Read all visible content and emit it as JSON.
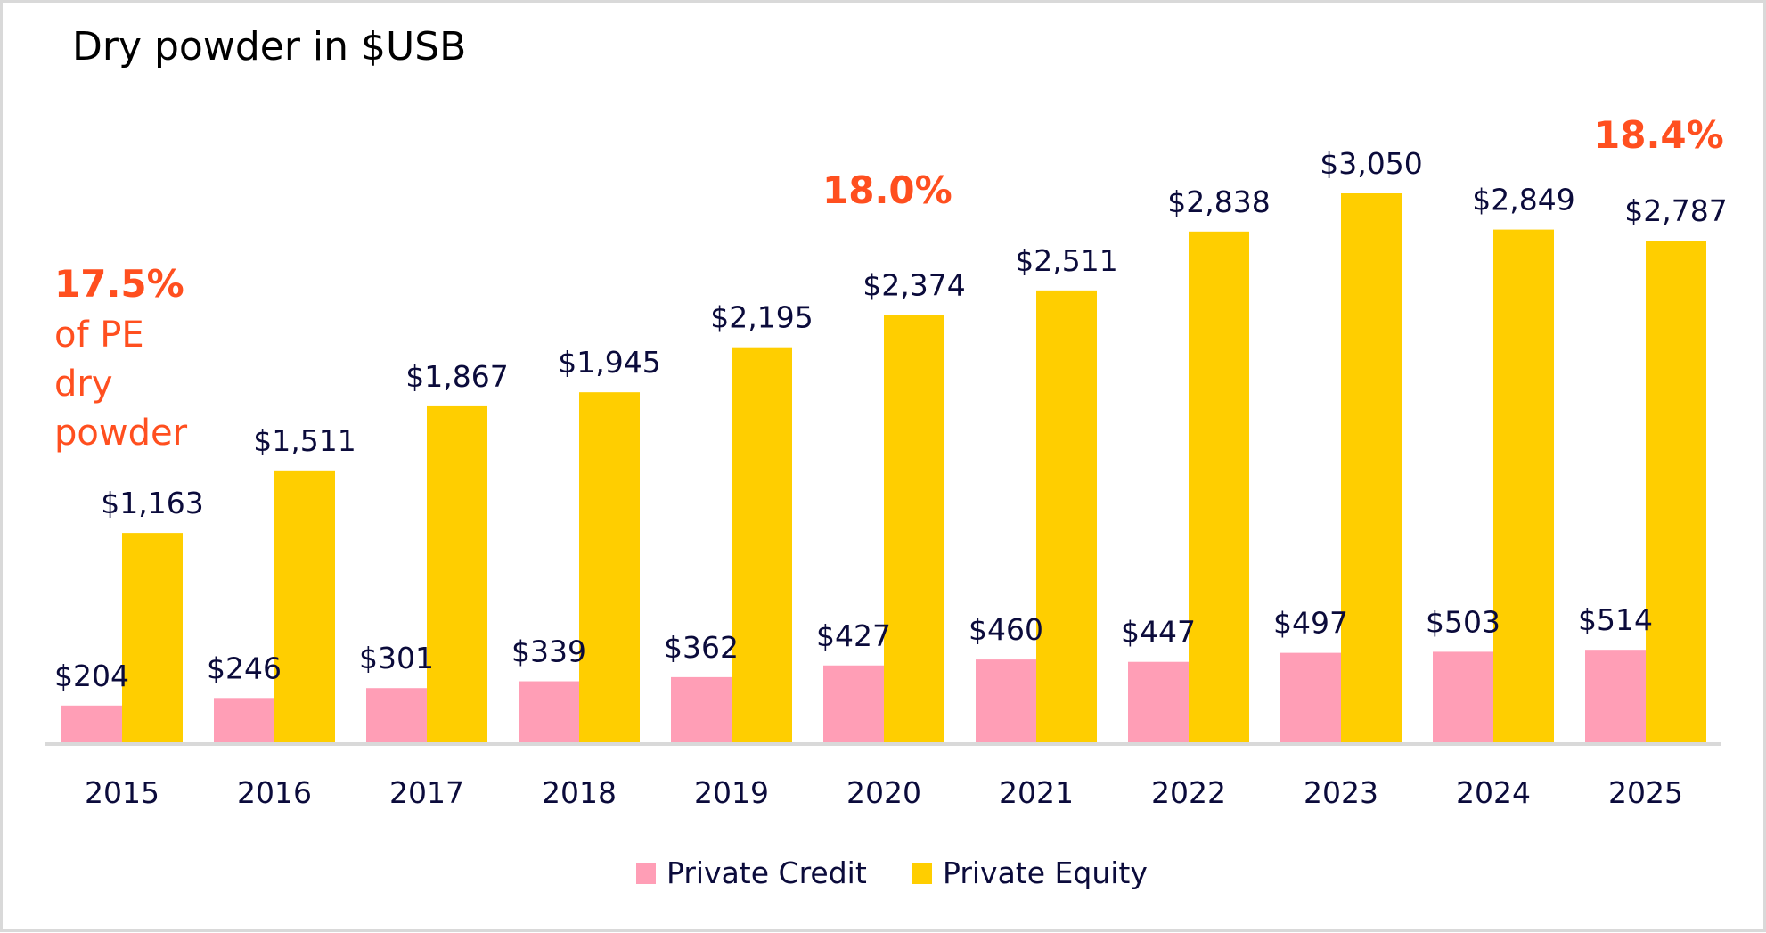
{
  "chart_data": {
    "type": "bar",
    "title": "Dry powder in $USB",
    "categories": [
      "2015",
      "2016",
      "2017",
      "2018",
      "2019",
      "2020",
      "2021",
      "2022",
      "2023",
      "2024",
      "2025"
    ],
    "series": [
      {
        "name": "Private Credit",
        "color": "#FF9EB6",
        "values": [
          204,
          246,
          301,
          339,
          362,
          427,
          460,
          447,
          497,
          503,
          514
        ],
        "labels": [
          "$204",
          "$246",
          "$301",
          "$339",
          "$362",
          "$427",
          "$460",
          "$447",
          "$497",
          "$503",
          "$514"
        ]
      },
      {
        "name": "Private Equity",
        "color": "#FFCE00",
        "values": [
          1163,
          1511,
          1867,
          1945,
          2195,
          2374,
          2511,
          2838,
          3050,
          2849,
          2787
        ],
        "labels": [
          "$1,163",
          "$1,511",
          "$1,867",
          "$1,945",
          "$2,195",
          "$2,374",
          "$2,511",
          "$2,838",
          "$3,050",
          "$2,849",
          "$2,787"
        ]
      }
    ],
    "ylim": [
      0,
      3300
    ],
    "grid": false,
    "legend": "bottom-center",
    "annotations": [
      {
        "category": "2015",
        "bold": "17.5%",
        "lines": [
          "of PE",
          "dry",
          "powder"
        ]
      },
      {
        "category": "2020",
        "bold": "18.0%",
        "lines": []
      },
      {
        "category": "2025",
        "bold": "18.4%",
        "lines": []
      }
    ],
    "colors": {
      "annotation": "#FF4F1F",
      "text": "#0B0B3B",
      "axis": "#D9D9D9"
    }
  }
}
